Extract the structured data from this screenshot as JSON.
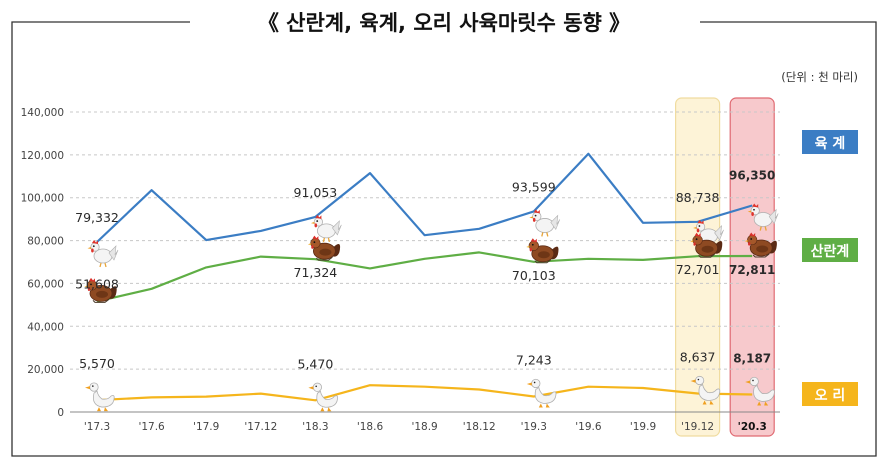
{
  "title": "《 산란계, 육계, 오리 사육마릿수 동향 》",
  "unit_note": "(단위 : 천 마리)",
  "colors": {
    "broiler": "#3b7dc4",
    "layer": "#5fae45",
    "duck": "#f5b51c",
    "highlight_prev_fill": "#fdf3d7",
    "highlight_prev_stroke": "#f0dca0",
    "highlight_latest_fill": "#f7c9cc",
    "highlight_latest_stroke": "#e06a72"
  },
  "legend": [
    {
      "key": "broiler",
      "label": "육  계"
    },
    {
      "key": "layer",
      "label": "산란계"
    },
    {
      "key": "duck",
      "label": "오  리"
    }
  ],
  "chart_data": {
    "type": "line",
    "title": "《 산란계, 육계, 오리 사육마릿수 동향 》",
    "unit": "(단위 : 천 마리)",
    "ylim": [
      0,
      140000
    ],
    "yticks": [
      0,
      20000,
      40000,
      60000,
      80000,
      100000,
      120000,
      140000
    ],
    "ytick_labels": [
      "0",
      "20,000",
      "40,000",
      "60,000",
      "80,000",
      "100,000",
      "120,000",
      "140,000"
    ],
    "categories": [
      "'17.3",
      "'17.6",
      "'17.9",
      "'17.12",
      "'18.3",
      "'18.6",
      "'18.9",
      "'18.12",
      "'19.3",
      "'19.6",
      "'19.9",
      "'19.12",
      "'20.3"
    ],
    "highlight_categories": [
      11,
      12
    ],
    "series": [
      {
        "key": "broiler",
        "name": "육계",
        "values": [
          79332,
          103500,
          80200,
          84500,
          91053,
          111500,
          82500,
          85500,
          93599,
          120500,
          88300,
          88738,
          96350
        ],
        "labels": [
          {
            "index": 0,
            "text": "79,332"
          },
          {
            "index": 4,
            "text": "91,053"
          },
          {
            "index": 8,
            "text": "93,599"
          },
          {
            "index": 11,
            "text": "88,738"
          },
          {
            "index": 12,
            "text": "96,350"
          }
        ]
      },
      {
        "key": "layer",
        "name": "산란계",
        "values": [
          51608,
          57500,
          67500,
          72500,
          71324,
          67000,
          71500,
          74500,
          70103,
          71500,
          71000,
          72701,
          72811
        ],
        "labels": [
          {
            "index": 0,
            "text": "51,608"
          },
          {
            "index": 4,
            "text": "71,324"
          },
          {
            "index": 8,
            "text": "70,103"
          },
          {
            "index": 11,
            "text": "72,701"
          },
          {
            "index": 12,
            "text": "72,811"
          }
        ]
      },
      {
        "key": "duck",
        "name": "오리",
        "values": [
          5570,
          6800,
          7200,
          8600,
          5470,
          12500,
          11800,
          10500,
          7243,
          11800,
          11200,
          8637,
          8187
        ],
        "labels": [
          {
            "index": 0,
            "text": "5,570"
          },
          {
            "index": 4,
            "text": "5,470"
          },
          {
            "index": 8,
            "text": "7,243"
          },
          {
            "index": 11,
            "text": "8,637"
          },
          {
            "index": 12,
            "text": "8,187"
          }
        ]
      }
    ]
  }
}
